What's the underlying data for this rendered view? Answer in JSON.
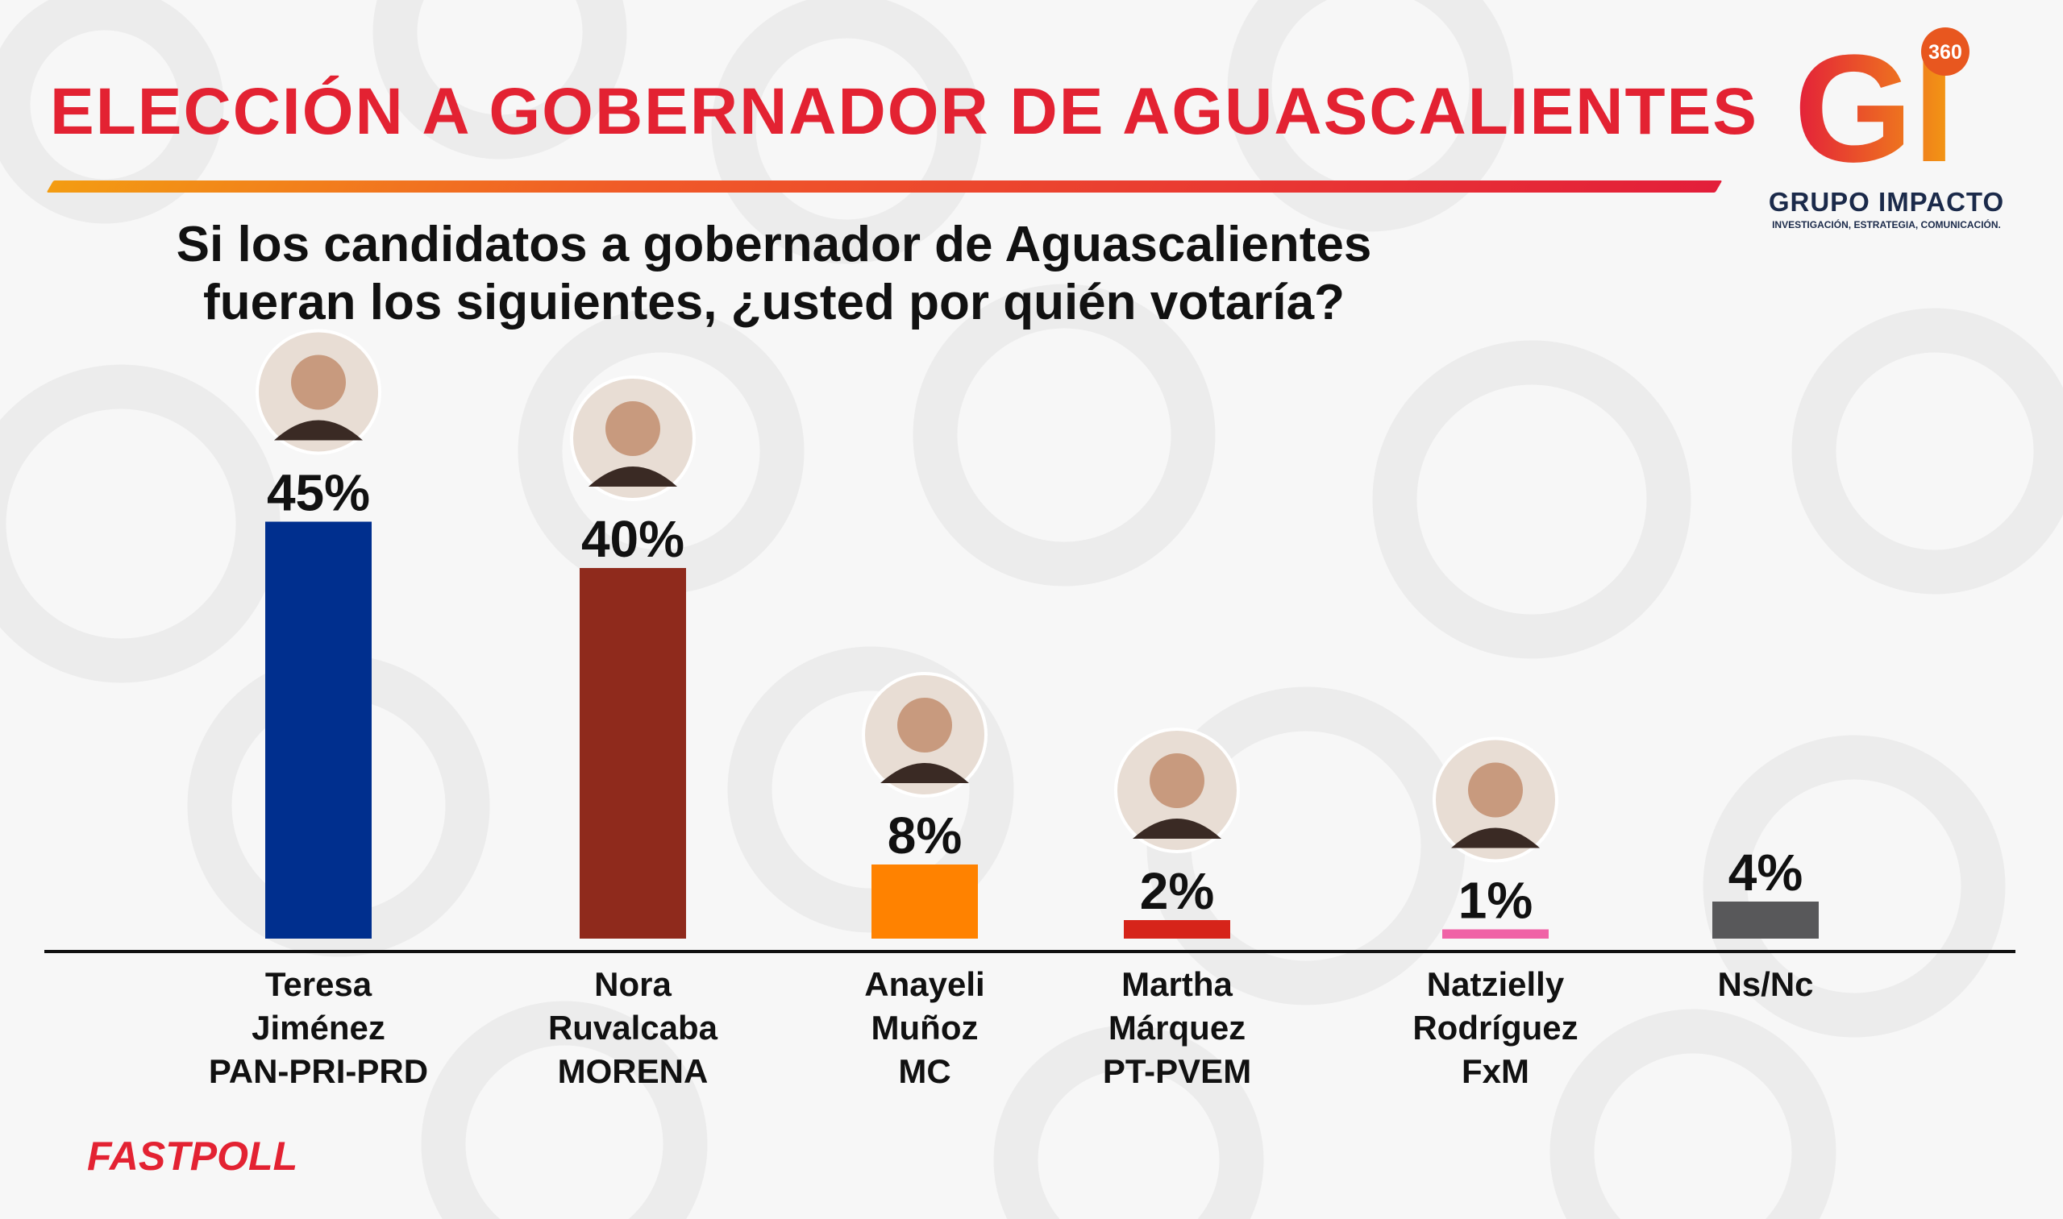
{
  "header": {
    "title": "ELECCIÓN A GOBERNADOR DE AGUASCALIENTES",
    "subtitle": "Si los candidatos a gobernador de Aguascalientes fueran los siguientes, ¿usted por quién votaría?"
  },
  "logo": {
    "letters": "GI",
    "badge": "360",
    "name": "GRUPO IMPACTO",
    "tagline": "INVESTIGACIÓN, ESTRATEGIA, COMUNICACIÓN."
  },
  "footer": {
    "source": "FASTPOLL"
  },
  "colors": {
    "accent": "#e32232",
    "Teresa": "#002f8e",
    "Nora": "#8f2a1c",
    "Anayeli": "#ff8200",
    "Martha": "#d6241a",
    "Natzielly": "#f062a6",
    "NsNc": "#58585a"
  },
  "chart_data": {
    "type": "bar",
    "title": "Si los candidatos a gobernador de Aguascalientes fueran los siguientes, ¿usted por quién votaría?",
    "xlabel": "",
    "ylabel": "",
    "ylim": [
      0,
      50
    ],
    "unit": "%",
    "grid": false,
    "legend": "none",
    "categories": [
      [
        "Teresa",
        "Jiménez",
        "PAN-PRI-PRD"
      ],
      [
        "Nora",
        "Ruvalcaba",
        "MORENA"
      ],
      [
        "Anayeli",
        "Muñoz",
        "MC"
      ],
      [
        "Martha",
        "Márquez",
        "PT-PVEM"
      ],
      [
        "Natzielly",
        "Rodríguez",
        "FxM"
      ],
      [
        "Ns/Nc"
      ]
    ],
    "values": [
      45,
      40,
      8,
      2,
      1,
      4
    ],
    "value_labels": [
      "45%",
      "40%",
      "8%",
      "2%",
      "1%",
      "4%"
    ],
    "bar_colors": [
      "#002f8e",
      "#8f2a1c",
      "#ff8200",
      "#d6241a",
      "#f062a6",
      "#58585a"
    ],
    "has_photo": [
      true,
      true,
      true,
      true,
      true,
      false
    ]
  }
}
